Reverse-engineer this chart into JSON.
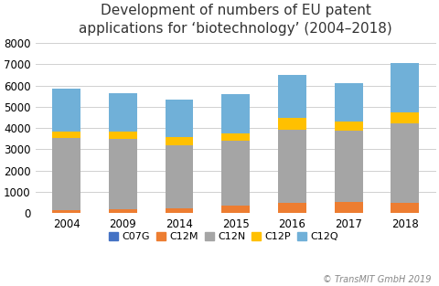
{
  "years": [
    "2004",
    "2009",
    "2014",
    "2015",
    "2016",
    "2017",
    "2018"
  ],
  "series": {
    "C07G": [
      0,
      0,
      0,
      0,
      0,
      0,
      0
    ],
    "C12M": [
      150,
      180,
      220,
      350,
      500,
      530,
      480
    ],
    "C12N": [
      3400,
      3300,
      2950,
      3050,
      3400,
      3350,
      3750
    ],
    "C12P": [
      300,
      350,
      400,
      350,
      600,
      430,
      520
    ],
    "C12Q": [
      2000,
      1800,
      1750,
      1850,
      2000,
      1800,
      2300
    ]
  },
  "colors": {
    "C07G": "#4472C4",
    "C12M": "#ED7D31",
    "C12N": "#A5A5A5",
    "C12P": "#FFC000",
    "C12Q": "#70B0D8"
  },
  "title_line1": "Development of numbers of EU patent",
  "title_line2": "applications for ‘biotechnology’ (2004–2018)",
  "ylim": [
    0,
    8000
  ],
  "yticks": [
    0,
    1000,
    2000,
    3000,
    4000,
    5000,
    6000,
    7000,
    8000
  ],
  "copyright": "© TransMIT GmbH 2019",
  "title_fontsize": 11,
  "legend_fontsize": 8,
  "tick_fontsize": 8.5,
  "bar_width": 0.5,
  "fig_width": 4.81,
  "fig_height": 3.13,
  "dpi": 100
}
